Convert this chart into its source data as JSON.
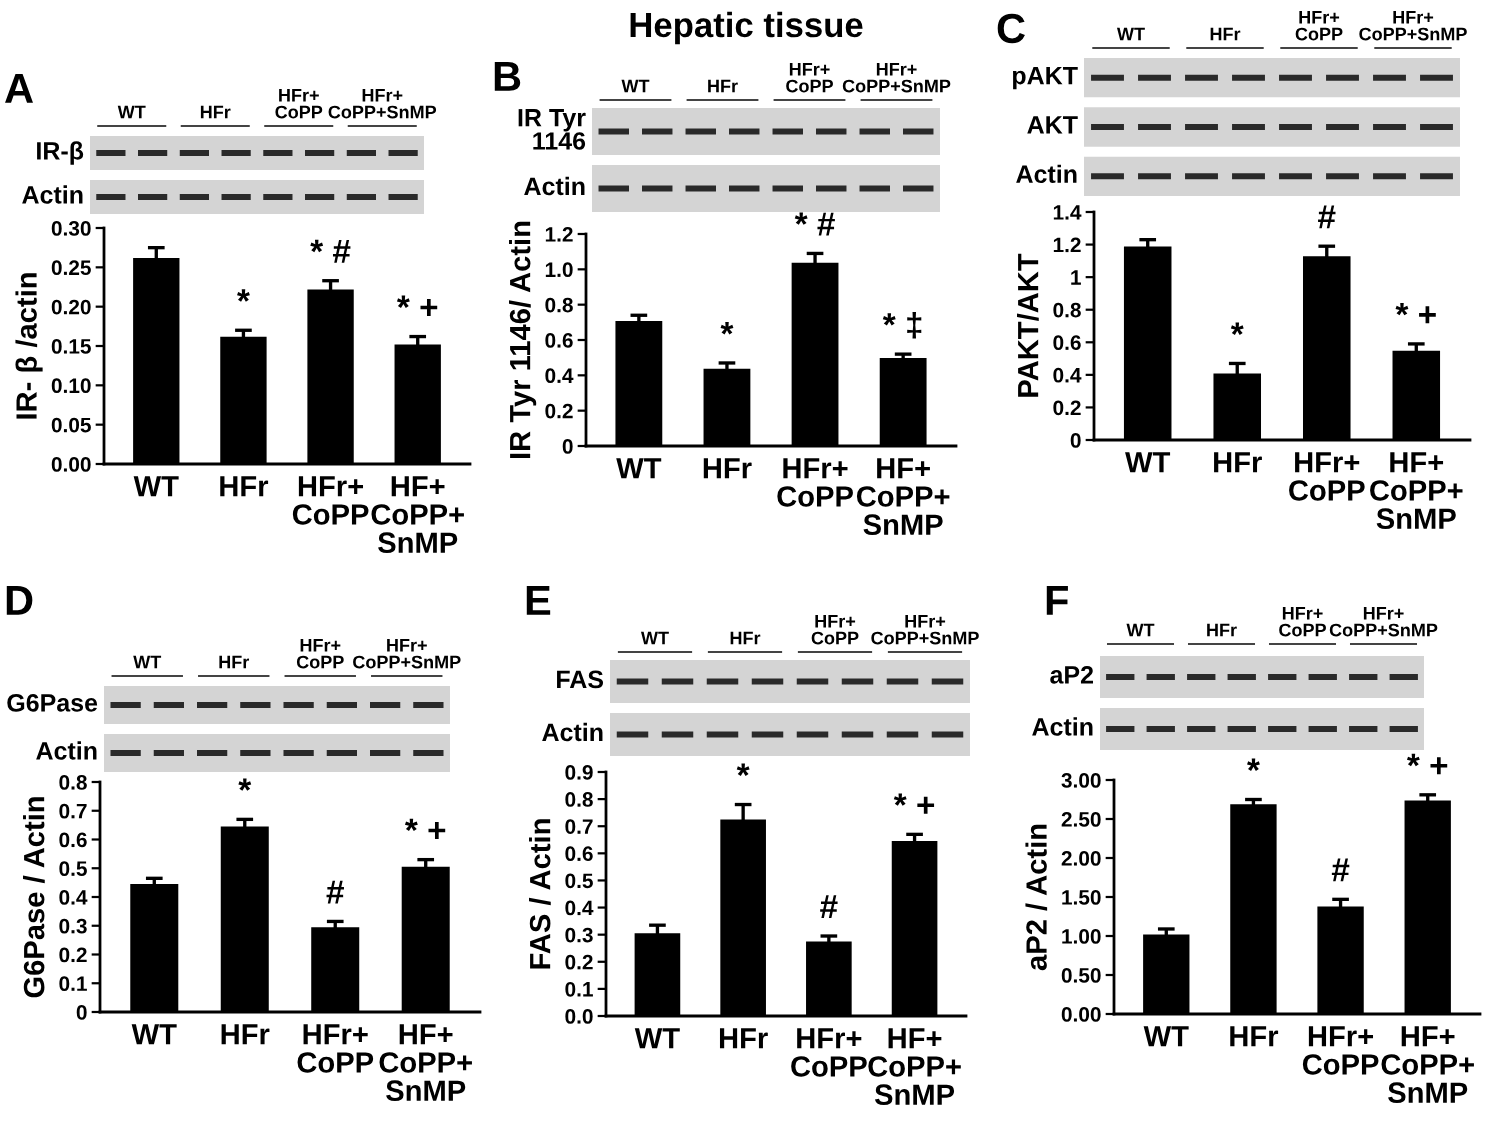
{
  "chart_data": [
    {
      "type": "bar",
      "title": "A",
      "ylabel": "IR- β /actin",
      "categories": [
        "WT",
        "HFr",
        "HFr+\nCoPP",
        "HF+\nCoPP+\nSnMP"
      ],
      "values": [
        0.26,
        0.16,
        0.22,
        0.15
      ],
      "errors": [
        0.015,
        0.01,
        0.013,
        0.012
      ],
      "color": "#000000",
      "ylim": [
        0,
        0.3
      ],
      "yticks": [
        {
          "value": 0,
          "label": "0.00"
        },
        {
          "value": 0.05,
          "label": "0.05"
        },
        {
          "value": 0.1,
          "label": "0.10"
        },
        {
          "value": 0.15,
          "label": "0.15"
        },
        {
          "value": 0.2,
          "label": "0.20"
        },
        {
          "value": 0.25,
          "label": "0.25"
        },
        {
          "value": 0.3,
          "label": "0.30"
        }
      ],
      "annotations": [
        "WT",
        "HFr",
        "HFr+\nCoPP",
        "HFr+\nCoPP+SnMP",
        "IR-β",
        "Actin",
        {
          "text": "*",
          "x": "HFr",
          "y": 0.16
        },
        {
          "text": "* #",
          "x": "HFr+\nCoPP",
          "y": 0.22
        },
        {
          "text": "* +",
          "x": "HF+\nCoPP+\nSnMP",
          "y": 0.15
        }
      ]
    },
    {
      "type": "bar",
      "title": "B",
      "subtitle": "Hepatic tissue",
      "ylabel": "IR Tyr 1146/ Actin",
      "categories": [
        "WT",
        "HFr",
        "HFr+\nCoPP",
        "HF+\nCoPP+\nSnMP"
      ],
      "values": [
        0.7,
        0.43,
        1.03,
        0.49
      ],
      "errors": [
        0.04,
        0.04,
        0.06,
        0.03
      ],
      "color": "#000000",
      "ylim": [
        0,
        1.2
      ],
      "yticks": [
        0,
        0.2,
        0.4,
        0.6,
        0.8,
        {
          "value": 1,
          "label": "1.0"
        },
        1.2
      ],
      "annotations": [
        "WT",
        "HFr",
        "HFr+\nCoPP",
        "HFr+\nCoPP+SnMP",
        "IR Tyr\n1146",
        "Actin",
        {
          "text": "*",
          "x": "HFr",
          "y": 0.43
        },
        {
          "text": "* #",
          "x": "HFr+\nCoPP",
          "y": 1.03
        },
        {
          "text": "* ‡",
          "x": "HF+\nCoPP+\nSnMP",
          "y": 0.49
        }
      ]
    },
    {
      "type": "bar",
      "title": "C",
      "ylabel": "PAKT/AKT",
      "categories": [
        "WT",
        "HFr",
        "HFr+\nCoPP",
        "HF+\nCoPP+\nSnMP"
      ],
      "values": [
        1.18,
        0.4,
        1.12,
        0.54
      ],
      "errors": [
        0.05,
        0.07,
        0.07,
        0.05
      ],
      "color": "#000000",
      "ylim": [
        0,
        1.4
      ],
      "yticks": [
        0,
        0.2,
        0.4,
        0.6,
        0.8,
        1,
        1.2,
        1.4
      ],
      "annotations": [
        "WT",
        "HFr",
        "HFr+\nCoPP",
        "HFr+\nCoPP+SnMP",
        "pAKT",
        "AKT",
        "Actin",
        {
          "text": "*",
          "x": "HFr",
          "y": 0.4
        },
        {
          "text": "#",
          "x": "HFr+\nCoPP",
          "y": 1.12
        },
        {
          "text": "* +",
          "x": "HF+\nCoPP+\nSnMP",
          "y": 0.54
        }
      ]
    },
    {
      "type": "bar",
      "title": "D",
      "ylabel": "G6Pase / Actin",
      "categories": [
        "WT",
        "HFr",
        "HFr+\nCoPP",
        "HF+\nCoPP+\nSnMP"
      ],
      "values": [
        0.44,
        0.64,
        0.29,
        0.5
      ],
      "errors": [
        0.025,
        0.03,
        0.025,
        0.03
      ],
      "color": "#000000",
      "ylim": [
        0,
        0.8
      ],
      "yticks": [
        0,
        0.1,
        0.2,
        0.3,
        0.4,
        0.5,
        0.6,
        0.7,
        0.8
      ],
      "annotations": [
        "WT",
        "HFr",
        "HFr+\nCoPP",
        "HFr+\nCoPP+SnMP",
        "G6Pase",
        "Actin",
        {
          "text": "*",
          "x": "HFr",
          "y": 0.64
        },
        {
          "text": "#",
          "x": "HFr+\nCoPP",
          "y": 0.29
        },
        {
          "text": "* +",
          "x": "HF+\nCoPP+\nSnMP",
          "y": 0.5
        }
      ]
    },
    {
      "type": "bar",
      "title": "E",
      "ylabel": "FAS / Actin",
      "categories": [
        "WT",
        "HFr",
        "HFr+\nCoPP",
        "HF+\nCoPP+\nSnMP"
      ],
      "values": [
        0.3,
        0.72,
        0.27,
        0.64
      ],
      "errors": [
        0.035,
        0.06,
        0.025,
        0.03
      ],
      "color": "#000000",
      "ylim": [
        0,
        0.9
      ],
      "yticks": [
        {
          "value": 0,
          "label": "0.0"
        },
        0.1,
        0.2,
        0.3,
        0.4,
        0.5,
        0.6,
        0.7,
        0.8,
        0.9
      ],
      "annotations": [
        "WT",
        "HFr",
        "HFr+\nCoPP",
        "HFr+\nCoPP+SnMP",
        "FAS",
        "Actin",
        {
          "text": "*",
          "x": "HFr",
          "y": 0.72
        },
        {
          "text": "#",
          "x": "HFr+\nCoPP",
          "y": 0.27
        },
        {
          "text": "* +",
          "x": "HF+\nCoPP+\nSnMP",
          "y": 0.64
        }
      ]
    },
    {
      "type": "bar",
      "title": "F",
      "ylabel": "aP2 / Actin",
      "categories": [
        "WT",
        "HFr",
        "HFr+\nCoPP",
        "HF+\nCoPP+\nSnMP"
      ],
      "values": [
        1.0,
        2.67,
        1.36,
        2.72
      ],
      "errors": [
        0.09,
        0.08,
        0.11,
        0.09
      ],
      "color": "#000000",
      "ylim": [
        0,
        3
      ],
      "yticks": [
        {
          "value": 0,
          "label": "0.00"
        },
        {
          "value": 0.5,
          "label": "0.50"
        },
        {
          "value": 1,
          "label": "1.00"
        },
        {
          "value": 1.5,
          "label": "1.50"
        },
        {
          "value": 2,
          "label": "2.00"
        },
        {
          "value": 2.5,
          "label": "2.50"
        },
        {
          "value": 3,
          "label": "3.00"
        }
      ],
      "annotations": [
        "WT",
        "HFr",
        "HFr+\nCoPP",
        "HFr+\nCoPP+SnMP",
        "aP2",
        "Actin",
        {
          "text": "*",
          "x": "HFr",
          "y": 2.67
        },
        {
          "text": "#",
          "x": "HFr+\nCoPP",
          "y": 1.36
        },
        {
          "text": "* +",
          "x": "HF+\nCoPP+\nSnMP",
          "y": 2.72
        }
      ]
    }
  ]
}
